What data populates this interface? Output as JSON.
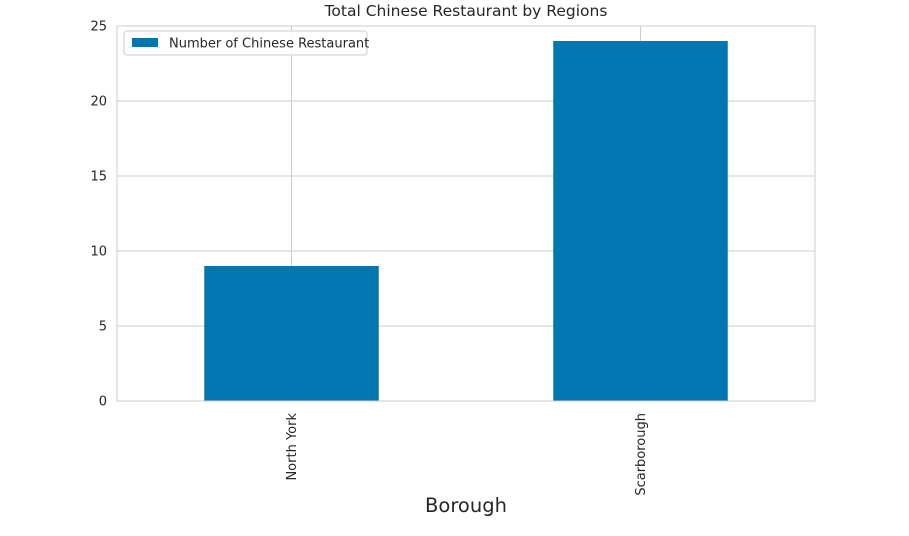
{
  "chart_data": {
    "type": "bar",
    "title": "Total Chinese Restaurant by Regions",
    "xlabel": "Borough",
    "ylabel": "",
    "categories": [
      "North York",
      "Scarborough"
    ],
    "series": [
      {
        "name": "Number of Chinese Restaurant",
        "values": [
          9,
          24
        ],
        "color": "#0077b0"
      }
    ],
    "ylim": [
      0,
      25
    ],
    "yticks": [
      0,
      5,
      10,
      15,
      20,
      25
    ],
    "grid": true,
    "legend_position": "upper-left"
  }
}
